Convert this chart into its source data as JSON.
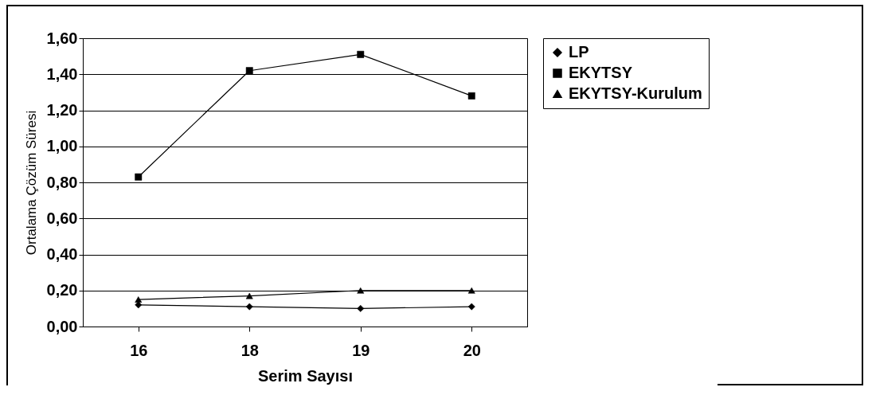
{
  "chart_data": {
    "type": "line",
    "xlabel": "Serim Sayısı",
    "ylabel": "Ortalama Çözüm Süresi",
    "categories": [
      "16",
      "18",
      "19",
      "20"
    ],
    "series": [
      {
        "name": "LP",
        "color": "#000000",
        "marker": "diamond",
        "values": [
          0.12,
          0.11,
          0.1,
          0.11
        ]
      },
      {
        "name": "EKYTSY",
        "color": "#000000",
        "marker": "square",
        "values": [
          0.83,
          1.42,
          1.51,
          1.28
        ]
      },
      {
        "name": "EKYTSY-Kurulum",
        "color": "#000000",
        "marker": "triangle",
        "values": [
          0.15,
          0.17,
          0.2,
          0.2
        ]
      }
    ],
    "ylim": [
      0,
      1.6
    ],
    "yticks": [
      {
        "value": 0,
        "label": "0,00"
      },
      {
        "value": 0.2,
        "label": "0,20"
      },
      {
        "value": 0.4,
        "label": "0,40"
      },
      {
        "value": 0.6,
        "label": "0,60"
      },
      {
        "value": 0.8,
        "label": "0,80"
      },
      {
        "value": 1.0,
        "label": "1,00"
      },
      {
        "value": 1.2,
        "label": "1,20"
      },
      {
        "value": 1.4,
        "label": "1,40"
      },
      {
        "value": 1.6,
        "label": "1,60"
      }
    ],
    "grid": "y",
    "legend": "right"
  }
}
